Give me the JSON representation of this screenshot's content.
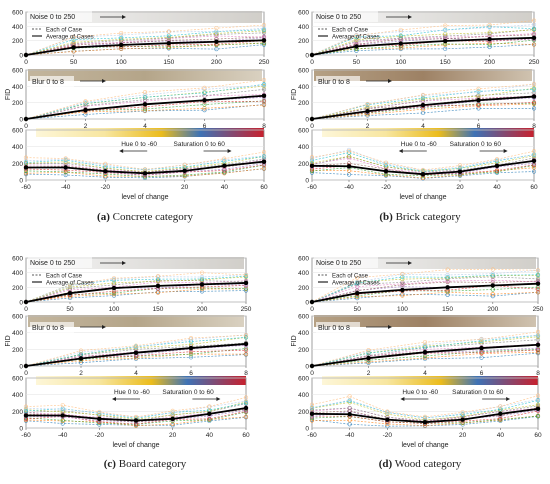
{
  "captions": [
    {
      "letter": "(a)",
      "text": " Concrete category"
    },
    {
      "letter": "(b)",
      "text": " Brick category"
    },
    {
      "letter": "(c)",
      "text": " Board category"
    },
    {
      "letter": "(d)",
      "text": " Wood category"
    }
  ],
  "colors": {
    "average": "#000000",
    "case_palette": [
      "#1f77b4",
      "#ff7f0e",
      "#2ca02c",
      "#d62728",
      "#9467bd",
      "#8c564b",
      "#e377c2",
      "#7f7f7f",
      "#bcbd22",
      "#17becf",
      "#aec7e8",
      "#ffbb78"
    ],
    "hue_gradient": [
      "#fdf6d8",
      "#f5e08a",
      "#e8b716",
      "#3d6fb3",
      "#c9212c"
    ]
  },
  "chart_data": [
    {
      "category": "Concrete",
      "ylabel": "FID",
      "xlabel": "level of change",
      "legend": [
        "Each of Case",
        "Average of Cases"
      ],
      "panels": [
        {
          "type": "line",
          "label": "Noise 0 to 250",
          "x": [
            0,
            50,
            100,
            150,
            200,
            250
          ],
          "xticks": [
            "0",
            "50",
            "100",
            "150",
            "200",
            "250"
          ],
          "yticks": [
            "0",
            "200",
            "400",
            "600"
          ],
          "ylim": [
            0,
            600
          ],
          "average": [
            0,
            105,
            140,
            165,
            185,
            205
          ],
          "case_max": [
            0,
            260,
            300,
            340,
            370,
            420
          ],
          "case_min": [
            0,
            40,
            60,
            80,
            90,
            110
          ]
        },
        {
          "type": "line",
          "label": "Blur 0 to 8",
          "x": [
            0,
            2,
            4,
            6,
            8
          ],
          "xticks": [
            "0",
            "2",
            "4",
            "6",
            "8"
          ],
          "yticks": [
            "0",
            "200",
            "400",
            "600"
          ],
          "ylim": [
            0,
            600
          ],
          "average": [
            0,
            110,
            180,
            230,
            285
          ],
          "case_max": [
            0,
            230,
            320,
            390,
            470
          ],
          "case_min": [
            0,
            50,
            90,
            120,
            150
          ]
        },
        {
          "type": "line",
          "label_hue": "Hue 0 to -60",
          "label_sat": "Saturation 0 to 60",
          "x": [
            -60,
            -40,
            -20,
            0,
            20,
            40,
            60
          ],
          "xticks": [
            "-60",
            "-40",
            "-20",
            "20",
            "40",
            "60"
          ],
          "yticks": [
            "0",
            "200",
            "400",
            "600"
          ],
          "ylim": [
            0,
            600
          ],
          "average": [
            150,
            150,
            105,
            80,
            110,
            170,
            220
          ],
          "case_max": [
            260,
            270,
            190,
            140,
            190,
            260,
            330
          ],
          "case_min": [
            70,
            60,
            40,
            20,
            40,
            70,
            120
          ]
        }
      ]
    },
    {
      "category": "Brick",
      "ylabel": "FID",
      "xlabel": "level of change",
      "legend": [
        "Each of Case",
        "Average of Cases"
      ],
      "panels": [
        {
          "type": "line",
          "label": "Noise 0 to 250",
          "x": [
            0,
            50,
            100,
            150,
            200,
            250
          ],
          "xticks": [
            "0",
            "50",
            "100",
            "150",
            "200",
            "250"
          ],
          "yticks": [
            "0",
            "200",
            "400",
            "600"
          ],
          "ylim": [
            0,
            600
          ],
          "average": [
            0,
            120,
            160,
            195,
            220,
            240
          ],
          "case_max": [
            0,
            290,
            350,
            400,
            440,
            470
          ],
          "case_min": [
            0,
            50,
            70,
            90,
            100,
            110
          ]
        },
        {
          "type": "line",
          "label": "Blur 0 to 8",
          "x": [
            0,
            2,
            4,
            6,
            8
          ],
          "xticks": [
            "0",
            "2",
            "4",
            "6",
            "8"
          ],
          "yticks": [
            "0",
            "200",
            "400",
            "600"
          ],
          "ylim": [
            0,
            600
          ],
          "average": [
            0,
            95,
            170,
            230,
            275
          ],
          "case_max": [
            0,
            200,
            300,
            370,
            440
          ],
          "case_min": [
            0,
            40,
            80,
            110,
            140
          ]
        },
        {
          "type": "line",
          "label_hue": "Hue 0 to -60",
          "label_sat": "Saturation 0 to 60",
          "x": [
            -60,
            -40,
            -20,
            0,
            20,
            40,
            60
          ],
          "xticks": [
            "-60",
            "-40",
            "-20",
            "20",
            "40",
            "60"
          ],
          "yticks": [
            "0",
            "200",
            "400",
            "600"
          ],
          "ylim": [
            0,
            600
          ],
          "average": [
            170,
            165,
            105,
            70,
            100,
            170,
            230
          ],
          "case_max": [
            270,
            380,
            210,
            130,
            180,
            270,
            340
          ],
          "case_min": [
            80,
            70,
            40,
            20,
            40,
            70,
            110
          ]
        }
      ]
    },
    {
      "category": "Board",
      "ylabel": "FID",
      "xlabel": "level of change",
      "legend": [
        "Each of Case",
        "Average of Cases"
      ],
      "panels": [
        {
          "type": "line",
          "label": "Noise 0 to 250",
          "x": [
            0,
            50,
            100,
            150,
            200,
            250
          ],
          "xticks": [
            "0",
            "50",
            "100",
            "150",
            "200",
            "250"
          ],
          "yticks": [
            "0",
            "200",
            "400",
            "600"
          ],
          "ylim": [
            0,
            600
          ],
          "average": [
            0,
            120,
            190,
            220,
            240,
            260
          ],
          "case_max": [
            0,
            260,
            330,
            370,
            390,
            400
          ],
          "case_min": [
            0,
            50,
            90,
            110,
            120,
            130
          ]
        },
        {
          "type": "line",
          "label": "Blur 0 to 8",
          "x": [
            0,
            2,
            4,
            6,
            8
          ],
          "xticks": [
            "0",
            "2",
            "4",
            "6",
            "8"
          ],
          "yticks": [
            "0",
            "200",
            "400",
            "600"
          ],
          "ylim": [
            0,
            600
          ],
          "average": [
            0,
            90,
            160,
            215,
            265
          ],
          "case_max": [
            0,
            180,
            260,
            330,
            400
          ],
          "case_min": [
            0,
            40,
            70,
            100,
            130
          ]
        },
        {
          "type": "line",
          "label_hue": "Hue 0 to -60",
          "label_sat": "Saturation 0 to 60",
          "x": [
            -60,
            -40,
            -20,
            0,
            20,
            40,
            60
          ],
          "xticks": [
            "-60",
            "-40",
            "-20",
            "20",
            "40",
            "60"
          ],
          "yticks": [
            "0",
            "200",
            "400",
            "600"
          ],
          "ylim": [
            0,
            600
          ],
          "average": [
            150,
            150,
            110,
            90,
            110,
            170,
            240
          ],
          "case_max": [
            260,
            270,
            200,
            140,
            210,
            260,
            360
          ],
          "case_min": [
            70,
            60,
            40,
            20,
            40,
            70,
            120
          ]
        }
      ]
    },
    {
      "category": "Wood",
      "ylabel": "FID",
      "xlabel": "level of change",
      "legend": [
        "Each of Case",
        "Average of Cases"
      ],
      "panels": [
        {
          "type": "line",
          "label": "Noise 0 to 250",
          "x": [
            0,
            50,
            100,
            150,
            200,
            250
          ],
          "xticks": [
            "0",
            "50",
            "100",
            "150",
            "200",
            "250"
          ],
          "yticks": [
            "0",
            "200",
            "400",
            "600"
          ],
          "ylim": [
            0,
            600
          ],
          "average": [
            0,
            120,
            165,
            200,
            225,
            250
          ],
          "case_max": [
            0,
            330,
            400,
            440,
            460,
            460
          ],
          "case_min": [
            0,
            50,
            70,
            80,
            90,
            100
          ]
        },
        {
          "type": "line",
          "label": "Blur 0 to 8",
          "x": [
            0,
            2,
            4,
            6,
            8
          ],
          "xticks": [
            "0",
            "2",
            "4",
            "6",
            "8"
          ],
          "yticks": [
            "0",
            "200",
            "400",
            "600"
          ],
          "ylim": [
            0,
            600
          ],
          "average": [
            0,
            95,
            165,
            215,
            255
          ],
          "case_max": [
            0,
            190,
            280,
            350,
            410
          ],
          "case_min": [
            0,
            40,
            80,
            110,
            130
          ]
        },
        {
          "type": "line",
          "label_hue": "Hue 0 to -60",
          "label_sat": "Saturation 0 to 60",
          "x": [
            -60,
            -40,
            -20,
            0,
            20,
            40,
            60
          ],
          "xticks": [
            "-60",
            "-40",
            "-20",
            "20",
            "40",
            "60"
          ],
          "yticks": [
            "0",
            "200",
            "400",
            "600"
          ],
          "ylim": [
            0,
            600
          ],
          "average": [
            170,
            165,
            100,
            70,
            100,
            170,
            230
          ],
          "case_max": [
            290,
            390,
            210,
            140,
            190,
            280,
            380
          ],
          "case_min": [
            70,
            60,
            30,
            20,
            40,
            70,
            110
          ]
        }
      ]
    }
  ]
}
